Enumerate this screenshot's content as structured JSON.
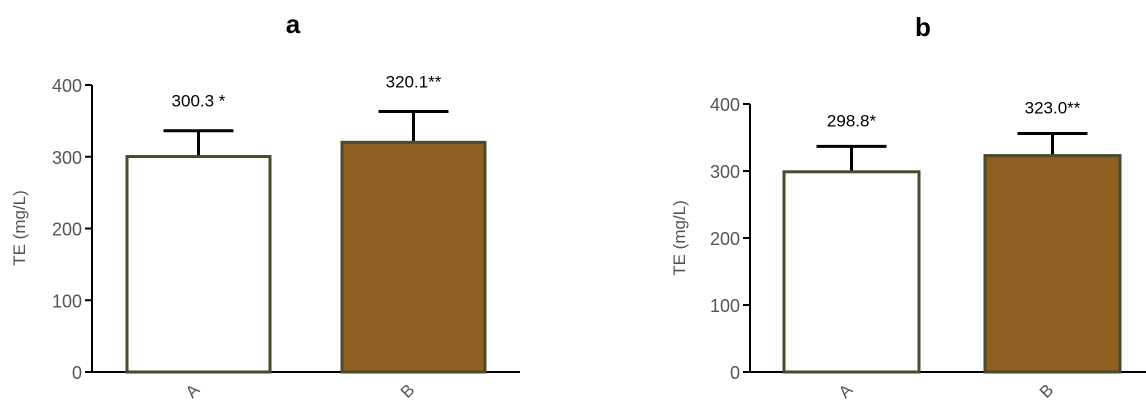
{
  "chart_data": [
    {
      "type": "bar",
      "panel_label": "a",
      "ylabel": "TE (mg/L)",
      "categories": [
        "A",
        "B"
      ],
      "values": [
        300.3,
        320.1
      ],
      "errors": [
        36,
        43
      ],
      "data_labels": [
        "300.3 *",
        "320.1**"
      ],
      "bar_colors": [
        "#ffffff",
        "#8f5e21"
      ],
      "edge_color": "#4a4a2c",
      "ylim": [
        0,
        400
      ],
      "yticks": [
        "0",
        "100",
        "200",
        "300",
        "400"
      ],
      "grid": false,
      "legend": "none"
    },
    {
      "type": "bar",
      "panel_label": "b",
      "ylabel": "TE (mg/L)",
      "categories": [
        "A",
        "B"
      ],
      "values": [
        298.8,
        323.0
      ],
      "errors": [
        38,
        33
      ],
      "data_labels": [
        "298.8*",
        "323.0**"
      ],
      "bar_colors": [
        "#ffffff",
        "#8f5e21"
      ],
      "edge_color": "#4a4a2c",
      "ylim": [
        0,
        400
      ],
      "yticks": [
        "0",
        "100",
        "200",
        "300",
        "400"
      ],
      "grid": false,
      "legend": "none"
    }
  ]
}
